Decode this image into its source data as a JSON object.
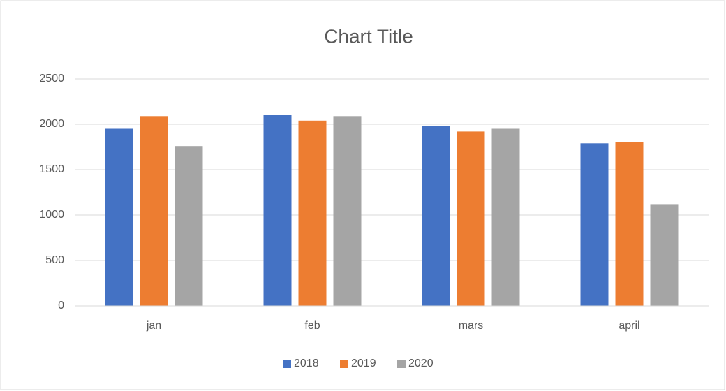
{
  "chart_data": {
    "type": "bar",
    "title": "Chart Title",
    "categories": [
      "jan",
      "feb",
      "mars",
      "april"
    ],
    "series": [
      {
        "name": "2018",
        "color": "#4472c4",
        "values": [
          1950,
          2100,
          1980,
          1790
        ]
      },
      {
        "name": "2019",
        "color": "#ed7d31",
        "values": [
          2090,
          2040,
          1920,
          1800
        ]
      },
      {
        "name": "2020",
        "color": "#a5a5a5",
        "values": [
          1760,
          2090,
          1950,
          1120
        ]
      }
    ],
    "ylim": [
      0,
      2500
    ],
    "yticks": [
      0,
      500,
      1000,
      1500,
      2000,
      2500
    ],
    "grid": true,
    "legend": "bottom"
  }
}
